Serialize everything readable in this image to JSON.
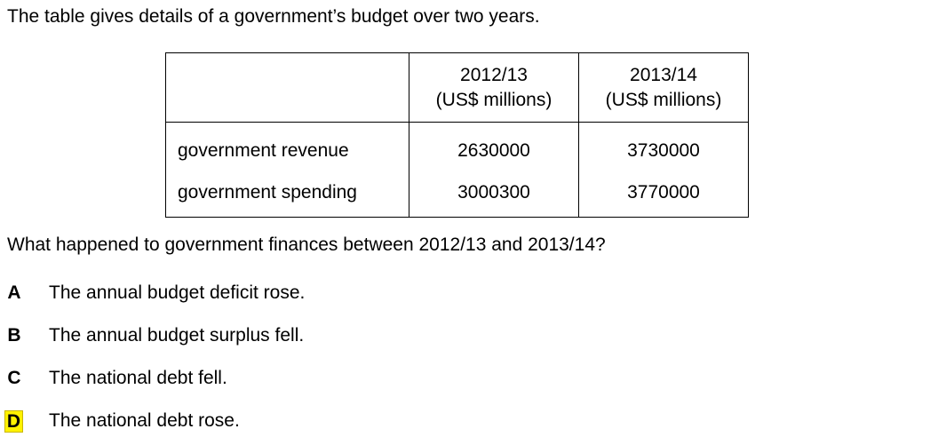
{
  "intro": "The table gives details of a government’s budget over two years.",
  "table": {
    "headers": [
      {
        "line1": "",
        "line2": ""
      },
      {
        "line1": "2012/13",
        "line2": "(US$ millions)"
      },
      {
        "line1": "2013/14",
        "line2": "(US$ millions)"
      }
    ],
    "rows": [
      {
        "label": "government revenue",
        "values": [
          "2630000",
          "3730000"
        ]
      },
      {
        "label": "government spending",
        "values": [
          "3000300",
          "3770000"
        ]
      }
    ]
  },
  "question": "What happened to government finances between 2012/13 and 2013/14?",
  "options": [
    {
      "letter": "A",
      "text": "The annual budget deficit rose."
    },
    {
      "letter": "B",
      "text": "The annual budget surplus fell."
    },
    {
      "letter": "C",
      "text": "The national debt fell."
    },
    {
      "letter": "D",
      "text": "The national debt rose."
    }
  ],
  "highlight_color": "#fff200"
}
